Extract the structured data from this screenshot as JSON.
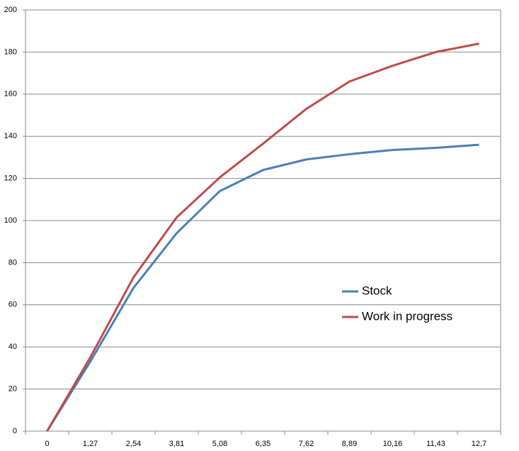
{
  "chart_data": {
    "type": "line",
    "categories": [
      "0",
      "1,27",
      "2,54",
      "3,81",
      "5,08",
      "6,35",
      "7,62",
      "8,89",
      "10,16",
      "11,43",
      "12,7"
    ],
    "series": [
      {
        "name": "Stock",
        "color": "#4a7ebb",
        "values": [
          0,
          33,
          68,
          94,
          114,
          124,
          129,
          131.5,
          133.5,
          134.5,
          136
        ]
      },
      {
        "name": "Work in progress",
        "color": "#be4b48",
        "values": [
          0,
          35,
          73,
          101.5,
          120.5,
          136.5,
          153,
          166,
          173.5,
          180,
          184
        ]
      }
    ],
    "ylim": [
      0,
      200
    ],
    "yticks": [
      0,
      20,
      40,
      60,
      80,
      100,
      120,
      140,
      160,
      180,
      200
    ],
    "grid": true,
    "legend": "right"
  }
}
